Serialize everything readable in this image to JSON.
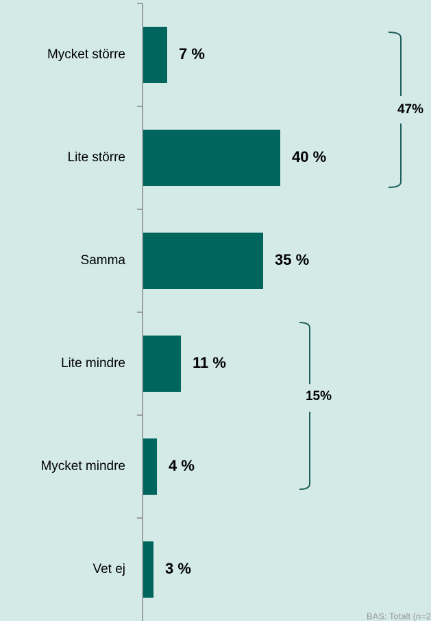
{
  "chart_data": {
    "type": "hbar",
    "categories": [
      "Mycket större",
      "Lite större",
      "Samma",
      "Lite mindre",
      "Mycket mindre",
      "Vet ej"
    ],
    "values": [
      7,
      40,
      35,
      11,
      4,
      3
    ],
    "value_labels": [
      "7 %",
      "40 %",
      "35 %",
      "11 %",
      "4 %",
      "3 %"
    ],
    "color": "#00655c",
    "annotations": [
      {
        "text": "47%"
      },
      {
        "text": "15%"
      }
    ],
    "footnote": "BAS: Totalt (n=2"
  }
}
